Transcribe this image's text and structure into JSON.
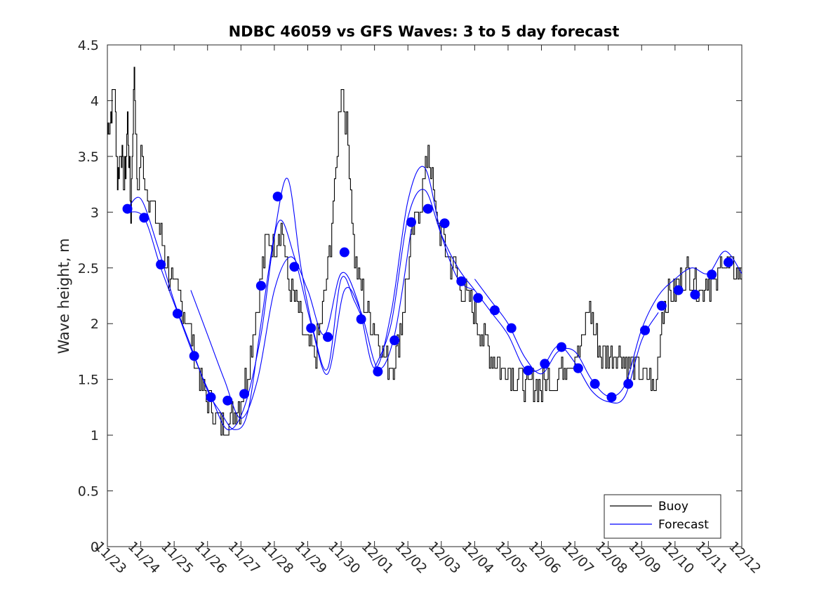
{
  "chart_data": {
    "type": "line",
    "title": "NDBC 46059 vs GFS Waves: 3 to 5 day forecast",
    "xlabel": "",
    "ylabel": "Wave height, m",
    "xlim": [
      0,
      19
    ],
    "ylim": [
      0,
      4.5
    ],
    "yticks": [
      "0",
      "0.5",
      "1",
      "1.5",
      "2",
      "2.5",
      "3",
      "3.5",
      "4",
      "4.5"
    ],
    "x_tick_labels": [
      "11/23",
      "11/24",
      "11/25",
      "11/26",
      "11/27",
      "11/28",
      "11/29",
      "11/30",
      "12/01",
      "12/02",
      "12/03",
      "12/04",
      "12/05",
      "12/06",
      "12/07",
      "12/08",
      "12/09",
      "12/10",
      "12/11",
      "12/12"
    ],
    "legend": {
      "position": "bottom-right",
      "entries": [
        "Buoy",
        "Forecast"
      ]
    },
    "colors": {
      "buoy": "#000000",
      "forecast": "#0000ff"
    },
    "series": [
      {
        "name": "Buoy",
        "note": "hourly observed wave height (approximate envelope)",
        "x": [
          0,
          0.1,
          0.2,
          0.3,
          0.4,
          0.5,
          0.6,
          0.7,
          0.8,
          0.9,
          1.0,
          1.2,
          1.4,
          1.6,
          1.8,
          2.0,
          2.2,
          2.4,
          2.6,
          2.8,
          3.0,
          3.2,
          3.4,
          3.6,
          3.8,
          4.0,
          4.2,
          4.4,
          4.6,
          4.8,
          5.0,
          5.2,
          5.4,
          5.6,
          5.8,
          6.0,
          6.2,
          6.4,
          6.6,
          6.8,
          7.0,
          7.2,
          7.4,
          7.6,
          7.8,
          8.0,
          8.2,
          8.4,
          8.6,
          8.8,
          9.0,
          9.2,
          9.4,
          9.6,
          9.8,
          10.0,
          10.2,
          10.4,
          10.6,
          10.8,
          11.0,
          11.2,
          11.4,
          11.6,
          11.8,
          12.0,
          12.2,
          12.4,
          12.6,
          12.8,
          13.0,
          13.2,
          13.4,
          13.6,
          13.8,
          14.0,
          14.2,
          14.4,
          14.6,
          14.8,
          15.0,
          15.2,
          15.4,
          15.6,
          15.8,
          16.0,
          16.2,
          16.4,
          16.6,
          16.8,
          17.0,
          17.2,
          17.4,
          17.6,
          17.8,
          18.0,
          18.2,
          18.4,
          18.6,
          18.8,
          19.0
        ],
        "values": [
          3.7,
          3.9,
          4.2,
          3.3,
          3.6,
          3.2,
          3.8,
          3.0,
          4.3,
          3.1,
          3.5,
          3.2,
          3.0,
          2.8,
          2.5,
          2.3,
          2.2,
          2.0,
          1.7,
          1.5,
          1.3,
          1.2,
          1.1,
          1.1,
          1.2,
          1.3,
          1.6,
          2.0,
          2.4,
          2.8,
          2.7,
          2.9,
          2.4,
          2.2,
          2.0,
          1.8,
          1.7,
          2.0,
          2.5,
          3.2,
          4.2,
          3.6,
          2.6,
          2.3,
          2.1,
          2.0,
          1.8,
          1.6,
          1.7,
          2.0,
          2.5,
          2.9,
          3.1,
          3.6,
          3.0,
          2.8,
          2.6,
          2.5,
          2.3,
          2.2,
          2.1,
          1.9,
          1.8,
          1.7,
          1.6,
          1.6,
          1.5,
          1.5,
          1.4,
          1.5,
          1.4,
          1.5,
          1.5,
          1.6,
          1.7,
          1.7,
          1.8,
          2.2,
          1.9,
          1.7,
          1.7,
          1.8,
          1.7,
          1.6,
          1.6,
          1.5,
          1.5,
          1.4,
          2.1,
          2.3,
          2.3,
          2.4,
          2.5,
          2.4,
          2.3,
          2.4,
          2.3,
          2.6,
          2.5,
          2.5,
          2.4
        ]
      },
      {
        "name": "Forecast",
        "note": "GFS forecast runs (thin lines) with 12-hourly verification markers (dots)",
        "x": [
          0.6,
          1.1,
          1.6,
          2.1,
          2.6,
          3.1,
          3.6,
          4.1,
          4.6,
          5.1,
          5.6,
          6.1,
          6.6,
          7.1,
          7.6,
          8.1,
          8.6,
          9.1,
          9.6,
          10.1,
          10.6,
          11.1,
          11.6,
          12.1,
          12.6,
          13.1,
          13.6,
          14.1,
          14.6,
          15.1,
          15.6,
          16.1,
          16.6,
          17.1,
          17.6,
          18.1,
          18.6
        ],
        "values": [
          3.03,
          2.95,
          2.53,
          2.09,
          1.71,
          1.34,
          1.31,
          1.37,
          2.34,
          3.14,
          2.51,
          1.96,
          1.88,
          2.64,
          2.04,
          1.57,
          1.85,
          2.91,
          3.03,
          2.9,
          2.38,
          2.23,
          2.12,
          1.96,
          1.58,
          1.64,
          1.79,
          1.6,
          1.46,
          1.34,
          1.46,
          1.94,
          2.16,
          2.3,
          2.26,
          2.44,
          2.55
        ]
      }
    ],
    "forecast_runs": [
      {
        "x": [
          0.6,
          1.0,
          1.5,
          2.0,
          2.5,
          3.0,
          3.4,
          3.8,
          4.2,
          4.6,
          5.0,
          5.4,
          5.8,
          6.2,
          6.6,
          7.0,
          7.4,
          7.7
        ],
        "values": [
          3.03,
          3.12,
          2.7,
          2.2,
          1.8,
          1.4,
          1.2,
          1.05,
          1.2,
          2.0,
          2.8,
          3.3,
          2.5,
          1.9,
          1.6,
          2.4,
          2.2,
          2.0
        ]
      },
      {
        "x": [
          0.6,
          1.1,
          1.6,
          2.1,
          2.6,
          3.1,
          3.6,
          4.1,
          4.6,
          5.1,
          5.6,
          6.1,
          6.6,
          7.1,
          7.6,
          8.1,
          8.6,
          9.1
        ],
        "values": [
          3.0,
          2.95,
          2.5,
          2.1,
          1.7,
          1.35,
          1.05,
          1.25,
          1.9,
          2.9,
          2.6,
          2.0,
          1.55,
          2.3,
          2.1,
          1.6,
          1.9,
          2.85
        ]
      },
      {
        "x": [
          2.5,
          3.0,
          3.5,
          4.0,
          4.5,
          5.0,
          5.5,
          6.0,
          6.5,
          7.0,
          7.5,
          8.0,
          8.5,
          9.0,
          9.5,
          10.0,
          10.5,
          11.0
        ],
        "values": [
          2.3,
          1.9,
          1.5,
          1.15,
          1.5,
          2.3,
          2.6,
          2.3,
          1.9,
          2.45,
          2.2,
          1.6,
          2.1,
          3.1,
          3.4,
          2.8,
          2.4,
          2.3
        ]
      },
      {
        "x": [
          8.0,
          8.5,
          9.0,
          9.5,
          10.0,
          10.5,
          11.0,
          11.5,
          12.0,
          12.5,
          13.0,
          13.5,
          14.0,
          14.5,
          15.0,
          15.5,
          16.0,
          16.5
        ],
        "values": [
          1.6,
          2.0,
          2.95,
          3.2,
          2.8,
          2.5,
          2.3,
          2.1,
          1.9,
          1.6,
          1.6,
          1.8,
          1.65,
          1.4,
          1.3,
          1.35,
          1.85,
          2.1
        ]
      },
      {
        "x": [
          11.0,
          11.5,
          12.0,
          12.5,
          13.0,
          13.5,
          14.0,
          14.5,
          15.0,
          15.5,
          16.0,
          16.5,
          17.0,
          17.5,
          18.0,
          18.5,
          19.0
        ],
        "values": [
          2.4,
          2.2,
          2.0,
          1.7,
          1.55,
          1.75,
          1.75,
          1.5,
          1.35,
          1.45,
          1.95,
          2.25,
          2.4,
          2.5,
          2.45,
          2.65,
          2.45
        ]
      }
    ]
  }
}
